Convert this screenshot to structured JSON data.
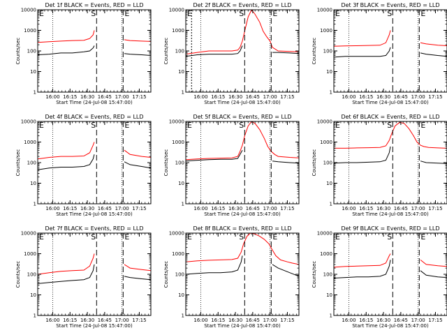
{
  "figure": {
    "time_start": "15:47:00",
    "xaxis_title": "Start Time (24-Jul-08 15:47:00)",
    "yaxis_title": "Counts/sec"
  },
  "chart_data": [
    {
      "type": "line",
      "title": "Det 1f BLACK = Events, RED = LLD",
      "xlabel": "Start Time (24-Jul-08 15:47:00)",
      "ylabel": "Counts/sec",
      "x_tick_labels": [
        "16:00",
        "16:15",
        "16:30",
        "16:45",
        "17:00",
        "17:15"
      ],
      "x_tick_minutes": [
        13,
        28,
        43,
        58,
        73,
        88
      ],
      "y_tick_labels": [
        "1",
        "10",
        "100",
        "1000",
        "10000"
      ],
      "ylim": [
        1,
        10000
      ],
      "y_scale": "log",
      "xlim_minutes": [
        0,
        98
      ],
      "markers": {
        "E1": -2,
        "S": 51,
        "E2": 74
      },
      "series": [
        {
          "name": "Events",
          "color": "#000000",
          "x_minutes": [
            0,
            10,
            20,
            30,
            40,
            45,
            48,
            49,
            51,
            73,
            75,
            80,
            90,
            98
          ],
          "values": [
            65,
            70,
            80,
            80,
            90,
            100,
            140,
            180,
            null,
            null,
            75,
            70,
            65,
            60
          ]
        },
        {
          "name": "LLD",
          "color": "#ff0000",
          "x_minutes": [
            0,
            10,
            20,
            30,
            40,
            45,
            48,
            49,
            51,
            73,
            75,
            80,
            90,
            98
          ],
          "values": [
            260,
            280,
            300,
            320,
            330,
            400,
            600,
            1000,
            null,
            null,
            350,
            320,
            300,
            290
          ]
        }
      ]
    },
    {
      "type": "line",
      "title": "Det 2f BLACK = Events, RED = LLD",
      "xlabel": "Start Time (24-Jul-08 15:47:00)",
      "ylabel": "Counts/sec",
      "x_tick_labels": [
        "16:00",
        "16:15",
        "16:30",
        "16:45",
        "17:00",
        "17:15"
      ],
      "x_tick_minutes": [
        13,
        28,
        43,
        58,
        73,
        88
      ],
      "y_tick_labels": [
        "1",
        "10",
        "100",
        "1000",
        "10000"
      ],
      "ylim": [
        1,
        10000
      ],
      "y_scale": "log",
      "xlim_minutes": [
        0,
        98
      ],
      "markers": {
        "E1": 5,
        "S": 51,
        "E2": 74
      },
      "series": [
        {
          "name": "Events",
          "color": "#000000",
          "x_minutes": [
            0,
            10,
            20,
            30,
            40,
            45,
            47,
            49,
            51,
            73,
            75,
            80,
            90,
            98
          ],
          "values": [
            55,
            65,
            70,
            70,
            70,
            75,
            100,
            180,
            null,
            null,
            85,
            85,
            80,
            75
          ]
        },
        {
          "name": "LLD",
          "color": "#ff0000",
          "x_minutes": [
            0,
            10,
            20,
            30,
            40,
            45,
            47,
            49,
            51,
            54,
            57,
            60,
            64,
            67,
            70,
            73,
            75,
            80,
            90,
            98
          ],
          "values": [
            70,
            85,
            100,
            100,
            100,
            110,
            150,
            300,
            900,
            4500,
            10000,
            6000,
            2500,
            900,
            500,
            300,
            150,
            100,
            95,
            90
          ]
        }
      ]
    },
    {
      "type": "line",
      "title": "Det 3f BLACK = Events, RED = LLD",
      "xlabel": "Start Time (24-Jul-08 15:47:00)",
      "ylabel": "Counts/sec",
      "x_tick_labels": [
        "16:00",
        "16:15",
        "16:30",
        "16:45",
        "17:00",
        "17:15"
      ],
      "x_tick_minutes": [
        13,
        28,
        43,
        58,
        73,
        88
      ],
      "y_tick_labels": [
        "1",
        "10",
        "100",
        "1000",
        "10000"
      ],
      "ylim": [
        1,
        10000
      ],
      "y_scale": "log",
      "xlim_minutes": [
        0,
        98
      ],
      "markers": {
        "E1": -2,
        "S": 51,
        "E2": 74
      },
      "series": [
        {
          "name": "Events",
          "color": "#000000",
          "x_minutes": [
            0,
            10,
            20,
            30,
            40,
            45,
            48,
            49,
            51,
            73,
            75,
            80,
            90,
            98
          ],
          "values": [
            50,
            55,
            55,
            55,
            55,
            60,
            100,
            150,
            null,
            null,
            80,
            70,
            60,
            55
          ]
        },
        {
          "name": "LLD",
          "color": "#ff0000",
          "x_minutes": [
            0,
            10,
            20,
            30,
            40,
            45,
            48,
            49,
            51,
            73,
            75,
            80,
            90,
            98
          ],
          "values": [
            170,
            175,
            180,
            185,
            190,
            250,
            600,
            1000,
            null,
            null,
            250,
            220,
            190,
            180
          ]
        }
      ]
    },
    {
      "type": "line",
      "title": "Det 4f BLACK = Events, RED = LLD",
      "xlabel": "Start Time (24-Jul-08 15:47:00)",
      "ylabel": "Counts/sec",
      "x_tick_labels": [
        "16:00",
        "16:15",
        "16:30",
        "16:45",
        "17:00",
        "17:15"
      ],
      "x_tick_minutes": [
        13,
        28,
        43,
        58,
        73,
        88
      ],
      "y_tick_labels": [
        "1",
        "10",
        "100",
        "1000",
        "10000"
      ],
      "ylim": [
        1,
        10000
      ],
      "y_scale": "log",
      "xlim_minutes": [
        0,
        98
      ],
      "markers": {
        "E1": -2,
        "S": 51,
        "E2": 74
      },
      "series": [
        {
          "name": "Events",
          "color": "#000000",
          "x_minutes": [
            0,
            10,
            20,
            30,
            40,
            45,
            48,
            49,
            51,
            73,
            75,
            80,
            90,
            98
          ],
          "values": [
            45,
            55,
            60,
            60,
            65,
            80,
            150,
            250,
            null,
            null,
            110,
            80,
            65,
            55
          ]
        },
        {
          "name": "LLD",
          "color": "#ff0000",
          "x_minutes": [
            0,
            10,
            20,
            30,
            40,
            45,
            48,
            49,
            51,
            73,
            75,
            80,
            90,
            98
          ],
          "values": [
            150,
            180,
            200,
            200,
            210,
            300,
            700,
            1000,
            null,
            null,
            400,
            250,
            200,
            180
          ]
        }
      ]
    },
    {
      "type": "line",
      "title": "Det 5f BLACK = Events, RED = LLD",
      "xlabel": "Start Time (24-Jul-08 15:47:00)",
      "ylabel": "Counts/sec",
      "x_tick_labels": [
        "16:00",
        "16:15",
        "16:30",
        "16:45",
        "17:00",
        "17:15"
      ],
      "x_tick_minutes": [
        13,
        28,
        43,
        58,
        73,
        88
      ],
      "y_tick_labels": [
        "1",
        "10",
        "100",
        "1000",
        "10000"
      ],
      "ylim": [
        1,
        10000
      ],
      "y_scale": "log",
      "xlim_minutes": [
        0,
        98
      ],
      "markers": {
        "E1": -2,
        "S": 51,
        "E2": 74
      },
      "series": [
        {
          "name": "Events",
          "color": "#000000",
          "x_minutes": [
            0,
            10,
            20,
            30,
            40,
            45,
            47,
            49,
            51,
            73,
            75,
            80,
            90,
            98
          ],
          "values": [
            120,
            130,
            140,
            145,
            145,
            160,
            250,
            400,
            null,
            null,
            120,
            110,
            100,
            95
          ]
        },
        {
          "name": "LLD",
          "color": "#ff0000",
          "x_minutes": [
            0,
            10,
            20,
            30,
            40,
            45,
            47,
            49,
            51,
            54,
            57,
            60,
            64,
            68,
            71,
            74,
            77,
            80,
            90,
            98
          ],
          "values": [
            140,
            150,
            160,
            165,
            170,
            200,
            350,
            700,
            2000,
            6000,
            10000,
            8000,
            4000,
            1500,
            600,
            350,
            250,
            200,
            180,
            170
          ]
        }
      ]
    },
    {
      "type": "line",
      "title": "Det 6f BLACK = Events, RED = LLD",
      "xlabel": "Start Time (24-Jul-08 15:47:00)",
      "ylabel": "Counts/sec",
      "x_tick_labels": [
        "16:00",
        "16:15",
        "16:30",
        "16:45",
        "17:00",
        "17:15"
      ],
      "x_tick_minutes": [
        13,
        28,
        43,
        58,
        73,
        88
      ],
      "y_tick_labels": [
        "1",
        "10",
        "100",
        "1000",
        "10000"
      ],
      "ylim": [
        1,
        10000
      ],
      "y_scale": "log",
      "xlim_minutes": [
        0,
        98
      ],
      "markers": {
        "E1": -2,
        "S": 51,
        "E2": 74
      },
      "series": [
        {
          "name": "Events",
          "color": "#000000",
          "x_minutes": [
            0,
            10,
            20,
            30,
            40,
            45,
            48,
            49,
            51,
            73,
            75,
            80,
            90,
            98
          ],
          "values": [
            95,
            100,
            100,
            105,
            110,
            130,
            300,
            600,
            null,
            null,
            120,
            100,
            95,
            90
          ]
        },
        {
          "name": "LLD",
          "color": "#ff0000",
          "x_minutes": [
            0,
            10,
            20,
            30,
            40,
            45,
            48,
            50,
            53,
            57,
            61,
            65,
            69,
            72,
            75,
            78,
            82,
            90,
            98
          ],
          "values": [
            500,
            500,
            520,
            530,
            550,
            650,
            1200,
            2500,
            6000,
            9000,
            8000,
            4500,
            2000,
            1000,
            700,
            600,
            550,
            520,
            500
          ]
        }
      ]
    },
    {
      "type": "line",
      "title": "Det 7f BLACK = Events, RED = LLD",
      "xlabel": "Start Time (24-Jul-08 15:47:00)",
      "ylabel": "Counts/sec",
      "x_tick_labels": [
        "16:00",
        "16:15",
        "16:30",
        "16:45",
        "17:00",
        "17:15"
      ],
      "x_tick_minutes": [
        13,
        28,
        43,
        58,
        73,
        88
      ],
      "y_tick_labels": [
        "1",
        "10",
        "100",
        "1000",
        "10000"
      ],
      "ylim": [
        1,
        10000
      ],
      "y_scale": "log",
      "xlim_minutes": [
        0,
        98
      ],
      "markers": {
        "E1": -2,
        "S": 51,
        "E2": 74
      },
      "series": [
        {
          "name": "Events",
          "color": "#000000",
          "x_minutes": [
            0,
            10,
            20,
            30,
            40,
            45,
            48,
            49,
            51,
            73,
            75,
            80,
            90,
            98
          ],
          "values": [
            35,
            40,
            45,
            50,
            55,
            70,
            150,
            300,
            null,
            null,
            80,
            70,
            60,
            55
          ]
        },
        {
          "name": "LLD",
          "color": "#ff0000",
          "x_minutes": [
            0,
            10,
            20,
            30,
            40,
            45,
            48,
            49,
            51,
            73,
            75,
            80,
            90,
            98
          ],
          "values": [
            100,
            120,
            140,
            150,
            160,
            250,
            600,
            1000,
            null,
            null,
            300,
            200,
            170,
            150
          ]
        }
      ]
    },
    {
      "type": "line",
      "title": "Det 8f BLACK = Events, RED = LLD",
      "xlabel": "Start Time (24-Jul-08 15:47:00)",
      "ylabel": "Counts/sec",
      "x_tick_labels": [
        "16:00",
        "16:15",
        "16:30",
        "16:45",
        "17:00",
        "17:15"
      ],
      "x_tick_minutes": [
        13,
        28,
        43,
        58,
        73,
        88
      ],
      "y_tick_labels": [
        "1",
        "10",
        "100",
        "1000",
        "10000"
      ],
      "ylim": [
        1,
        10000
      ],
      "y_scale": "log",
      "xlim_minutes": [
        0,
        98
      ],
      "markers": {
        "E1": -2,
        "S": 51,
        "E2": 74
      },
      "series": [
        {
          "name": "Events",
          "color": "#000000",
          "x_minutes": [
            0,
            10,
            20,
            30,
            40,
            45,
            48,
            49,
            51,
            73,
            75,
            80,
            90,
            98
          ],
          "values": [
            100,
            110,
            120,
            120,
            130,
            160,
            400,
            800,
            null,
            null,
            300,
            200,
            120,
            80
          ]
        },
        {
          "name": "LLD",
          "color": "#ff0000",
          "x_minutes": [
            0,
            10,
            20,
            30,
            40,
            45,
            48,
            50,
            53,
            56,
            60,
            64,
            68,
            72,
            75,
            78,
            82,
            88,
            92,
            98
          ],
          "values": [
            400,
            450,
            480,
            500,
            520,
            600,
            1200,
            3000,
            7000,
            10000,
            9000,
            7000,
            5000,
            3000,
            1500,
            800,
            500,
            400,
            350,
            300
          ]
        }
      ]
    },
    {
      "type": "line",
      "title": "Det 9f BLACK = Events, RED = LLD",
      "xlabel": "Start Time (24-Jul-08 15:47:00)",
      "ylabel": "Counts/sec",
      "x_tick_labels": [
        "16:00",
        "16:15",
        "16:30",
        "16:45",
        "17:00",
        "17:15"
      ],
      "x_tick_minutes": [
        13,
        28,
        43,
        58,
        73,
        88
      ],
      "y_tick_labels": [
        "1",
        "10",
        "100",
        "1000",
        "10000"
      ],
      "ylim": [
        1,
        10000
      ],
      "y_scale": "log",
      "xlim_minutes": [
        0,
        98
      ],
      "markers": {
        "E1": -2,
        "S": 51,
        "E2": 74
      },
      "series": [
        {
          "name": "Events",
          "color": "#000000",
          "x_minutes": [
            0,
            10,
            20,
            30,
            40,
            45,
            48,
            49,
            51,
            73,
            75,
            80,
            90,
            98
          ],
          "values": [
            65,
            70,
            75,
            75,
            80,
            100,
            250,
            500,
            null,
            null,
            150,
            90,
            75,
            70
          ]
        },
        {
          "name": "LLD",
          "color": "#ff0000",
          "x_minutes": [
            0,
            10,
            20,
            30,
            40,
            45,
            48,
            49,
            51,
            73,
            75,
            80,
            90,
            98
          ],
          "values": [
            220,
            240,
            250,
            260,
            270,
            350,
            800,
            1000,
            null,
            null,
            500,
            300,
            260,
            240
          ]
        }
      ]
    }
  ]
}
